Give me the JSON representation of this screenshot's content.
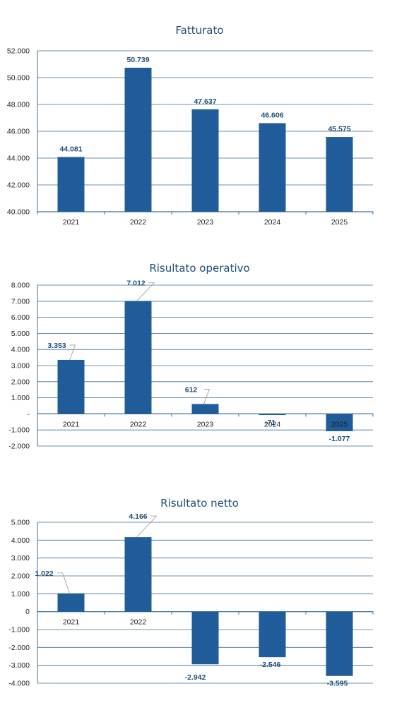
{
  "chart_data": [
    {
      "type": "bar",
      "title": "Fatturato",
      "categories": [
        "2021",
        "2022",
        "2023",
        "2024",
        "2025"
      ],
      "values": [
        44081,
        50739,
        47637,
        46606,
        45575
      ],
      "value_labels": [
        "44.081",
        "50.739",
        "47.637",
        "46.606",
        "45.575"
      ],
      "ylim": [
        40000,
        52000
      ],
      "yticks": [
        40000,
        42000,
        44000,
        46000,
        48000,
        50000,
        52000
      ],
      "ytick_labels": [
        "40.000",
        "42.000",
        "44.000",
        "46.000",
        "48.000",
        "50.000",
        "52.000"
      ],
      "grid": true,
      "bar_color": "#1f5c99",
      "text_color": "#1f4e79"
    },
    {
      "type": "bar",
      "title": "Risultato operativo",
      "categories": [
        "2021",
        "2022",
        "2023",
        "2024",
        "2025"
      ],
      "values": [
        3353,
        7012,
        612,
        -71,
        -1077
      ],
      "value_labels": [
        "3.353",
        "7.012",
        "612",
        "-71",
        "-1.077"
      ],
      "ylim": [
        -2000,
        8000
      ],
      "yticks": [
        -2000,
        -1000,
        0,
        1000,
        2000,
        3000,
        4000,
        5000,
        6000,
        7000,
        8000
      ],
      "ytick_labels": [
        "-2.000",
        "-1.000",
        "-",
        "1.000",
        "2.000",
        "3.000",
        "4.000",
        "5.000",
        "6.000",
        "7.000",
        "8.000"
      ],
      "grid": true,
      "bar_color": "#1f5c99",
      "text_color": "#1f4e79"
    },
    {
      "type": "bar",
      "title": "Risultato netto",
      "categories": [
        "2021",
        "2022",
        "",
        "",
        ""
      ],
      "values": [
        1022,
        4166,
        -2942,
        -2546,
        -3595
      ],
      "value_labels": [
        "1.022",
        "4.166",
        "-2.942",
        "-2.546",
        "-3.595"
      ],
      "ylim": [
        -4000,
        5000
      ],
      "yticks": [
        -4000,
        -3000,
        -2000,
        -1000,
        0,
        1000,
        2000,
        3000,
        4000,
        5000
      ],
      "ytick_labels": [
        "-4.000",
        "-3.000",
        "-2.000",
        "-1.000",
        "0",
        "1.000",
        "2.000",
        "3.000",
        "4.000",
        "5.000"
      ],
      "grid": true,
      "bar_color": "#1f5c99",
      "text_color": "#1f4e79"
    }
  ]
}
